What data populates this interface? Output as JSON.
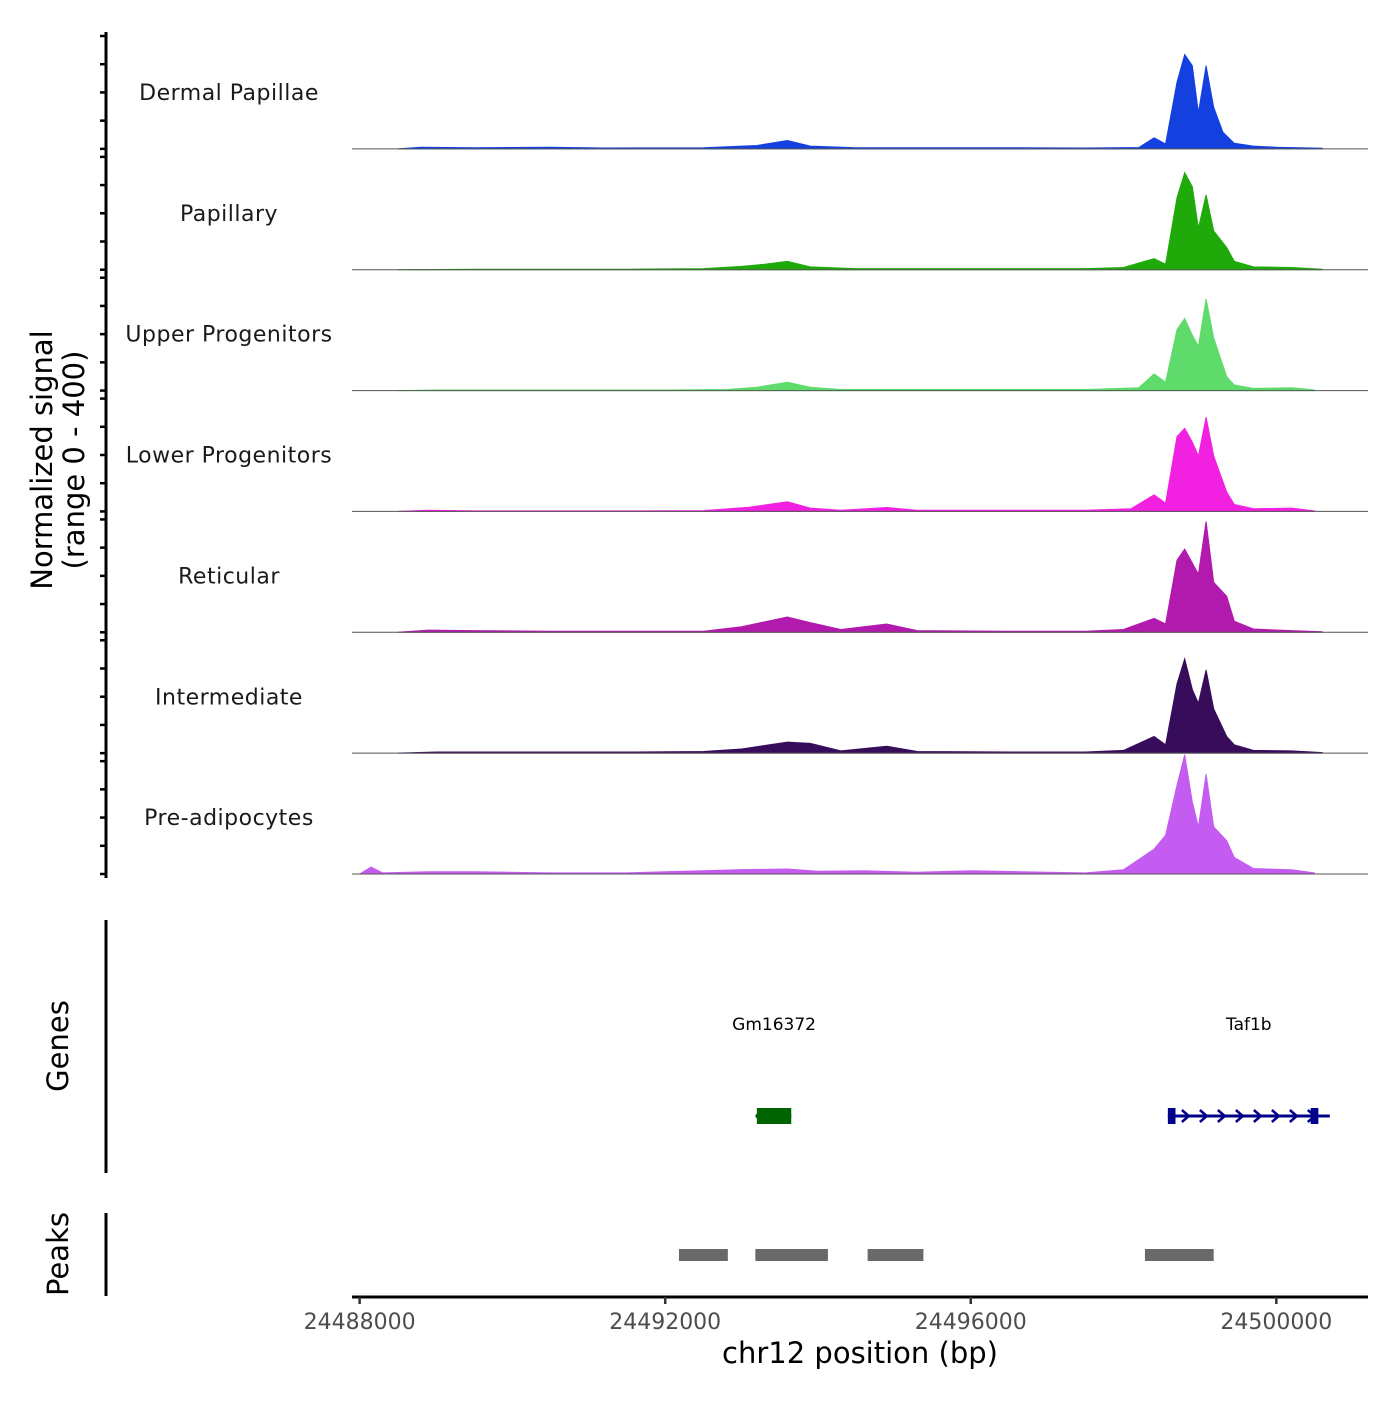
{
  "chart_data": {
    "type": "area",
    "title": "",
    "chromosome": "chr12",
    "xlabel": "chr12 position (bp)",
    "ylabel_line1": "Normalized signal",
    "ylabel_line2": "(range 0 - 400)",
    "xlim": [
      24487900,
      24501200
    ],
    "ylim": [
      0,
      400
    ],
    "x_ticks": [
      24488000,
      24492000,
      24496000,
      24500000
    ],
    "x_tick_labels": [
      "24488000",
      "24492000",
      "24496000",
      "24500000"
    ],
    "tracks": [
      {
        "name": "Dermal Papillae",
        "color": "#1440E0",
        "points": [
          [
            24488500,
            0
          ],
          [
            24488800,
            6
          ],
          [
            24489500,
            4
          ],
          [
            24490500,
            6
          ],
          [
            24491200,
            3
          ],
          [
            24492500,
            4
          ],
          [
            24493200,
            12
          ],
          [
            24493600,
            30
          ],
          [
            24493900,
            10
          ],
          [
            24494500,
            4
          ],
          [
            24495500,
            4
          ],
          [
            24496500,
            4
          ],
          [
            24497500,
            3
          ],
          [
            24498200,
            5
          ],
          [
            24498400,
            40
          ],
          [
            24498550,
            18
          ],
          [
            24498700,
            240
          ],
          [
            24498800,
            340
          ],
          [
            24498900,
            300
          ],
          [
            24498980,
            130
          ],
          [
            24499080,
            300
          ],
          [
            24499180,
            150
          ],
          [
            24499300,
            60
          ],
          [
            24499450,
            20
          ],
          [
            24499700,
            10
          ],
          [
            24500000,
            6
          ],
          [
            24500600,
            2
          ]
        ]
      },
      {
        "name": "Papillary",
        "color": "#1FAA0A",
        "points": [
          [
            24488500,
            0
          ],
          [
            24489500,
            2
          ],
          [
            24490500,
            2
          ],
          [
            24491500,
            2
          ],
          [
            24492500,
            4
          ],
          [
            24493000,
            12
          ],
          [
            24493300,
            20
          ],
          [
            24493600,
            30
          ],
          [
            24493900,
            10
          ],
          [
            24494500,
            4
          ],
          [
            24495500,
            4
          ],
          [
            24496500,
            4
          ],
          [
            24497500,
            4
          ],
          [
            24498000,
            8
          ],
          [
            24498400,
            40
          ],
          [
            24498550,
            20
          ],
          [
            24498700,
            260
          ],
          [
            24498800,
            350
          ],
          [
            24498900,
            300
          ],
          [
            24498980,
            150
          ],
          [
            24499080,
            270
          ],
          [
            24499180,
            140
          ],
          [
            24499350,
            80
          ],
          [
            24499450,
            30
          ],
          [
            24499700,
            10
          ],
          [
            24500200,
            8
          ],
          [
            24500600,
            2
          ]
        ]
      },
      {
        "name": "Upper Progenitors",
        "color": "#5EDB6A",
        "points": [
          [
            24488500,
            0
          ],
          [
            24489000,
            2
          ],
          [
            24490500,
            2
          ],
          [
            24492000,
            2
          ],
          [
            24492800,
            4
          ],
          [
            24493200,
            12
          ],
          [
            24493600,
            30
          ],
          [
            24493900,
            12
          ],
          [
            24494300,
            4
          ],
          [
            24495500,
            4
          ],
          [
            24496500,
            4
          ],
          [
            24497500,
            4
          ],
          [
            24498200,
            10
          ],
          [
            24498400,
            60
          ],
          [
            24498550,
            30
          ],
          [
            24498700,
            220
          ],
          [
            24498800,
            260
          ],
          [
            24498900,
            200
          ],
          [
            24498980,
            160
          ],
          [
            24499080,
            330
          ],
          [
            24499180,
            190
          ],
          [
            24499350,
            50
          ],
          [
            24499450,
            20
          ],
          [
            24499700,
            8
          ],
          [
            24500200,
            10
          ],
          [
            24500500,
            2
          ]
        ]
      },
      {
        "name": "Lower Progenitors",
        "color": "#F220E0",
        "points": [
          [
            24488500,
            0
          ],
          [
            24488900,
            4
          ],
          [
            24489500,
            2
          ],
          [
            24490500,
            2
          ],
          [
            24491500,
            2
          ],
          [
            24492500,
            3
          ],
          [
            24493100,
            15
          ],
          [
            24493600,
            35
          ],
          [
            24493900,
            12
          ],
          [
            24494300,
            4
          ],
          [
            24494900,
            14
          ],
          [
            24495300,
            4
          ],
          [
            24496500,
            4
          ],
          [
            24497500,
            4
          ],
          [
            24498100,
            10
          ],
          [
            24498400,
            60
          ],
          [
            24498550,
            30
          ],
          [
            24498700,
            270
          ],
          [
            24498800,
            300
          ],
          [
            24498900,
            250
          ],
          [
            24498980,
            200
          ],
          [
            24499080,
            340
          ],
          [
            24499180,
            200
          ],
          [
            24499350,
            70
          ],
          [
            24499450,
            25
          ],
          [
            24499700,
            10
          ],
          [
            24500200,
            12
          ],
          [
            24500500,
            2
          ]
        ]
      },
      {
        "name": "Reticular",
        "color": "#B21AAE",
        "points": [
          [
            24488500,
            0
          ],
          [
            24488900,
            8
          ],
          [
            24489500,
            6
          ],
          [
            24490500,
            4
          ],
          [
            24491500,
            4
          ],
          [
            24492500,
            4
          ],
          [
            24493000,
            20
          ],
          [
            24493600,
            55
          ],
          [
            24493900,
            35
          ],
          [
            24494300,
            10
          ],
          [
            24494900,
            30
          ],
          [
            24495300,
            6
          ],
          [
            24496500,
            4
          ],
          [
            24497500,
            4
          ],
          [
            24498000,
            10
          ],
          [
            24498400,
            50
          ],
          [
            24498550,
            30
          ],
          [
            24498700,
            260
          ],
          [
            24498800,
            300
          ],
          [
            24498900,
            250
          ],
          [
            24498980,
            210
          ],
          [
            24499080,
            400
          ],
          [
            24499180,
            180
          ],
          [
            24499350,
            130
          ],
          [
            24499450,
            40
          ],
          [
            24499700,
            12
          ],
          [
            24500200,
            6
          ],
          [
            24500600,
            2
          ]
        ]
      },
      {
        "name": "Intermediate",
        "color": "#370D5B",
        "points": [
          [
            24488500,
            0
          ],
          [
            24489000,
            4
          ],
          [
            24489500,
            4
          ],
          [
            24490500,
            4
          ],
          [
            24491500,
            4
          ],
          [
            24492500,
            6
          ],
          [
            24493000,
            15
          ],
          [
            24493600,
            40
          ],
          [
            24493900,
            35
          ],
          [
            24494300,
            8
          ],
          [
            24494900,
            25
          ],
          [
            24495300,
            6
          ],
          [
            24496500,
            4
          ],
          [
            24497500,
            4
          ],
          [
            24498000,
            10
          ],
          [
            24498400,
            60
          ],
          [
            24498550,
            30
          ],
          [
            24498700,
            250
          ],
          [
            24498800,
            340
          ],
          [
            24498900,
            230
          ],
          [
            24498980,
            180
          ],
          [
            24499080,
            300
          ],
          [
            24499180,
            160
          ],
          [
            24499350,
            60
          ],
          [
            24499450,
            30
          ],
          [
            24499700,
            10
          ],
          [
            24500200,
            8
          ],
          [
            24500600,
            2
          ]
        ]
      },
      {
        "name": "Pre-adipocytes",
        "color": "#C45CF2",
        "points": [
          [
            24488000,
            0
          ],
          [
            24488150,
            25
          ],
          [
            24488300,
            4
          ],
          [
            24488900,
            8
          ],
          [
            24489500,
            8
          ],
          [
            24490500,
            4
          ],
          [
            24491500,
            4
          ],
          [
            24492000,
            8
          ],
          [
            24492500,
            12
          ],
          [
            24493000,
            16
          ],
          [
            24493600,
            18
          ],
          [
            24494000,
            10
          ],
          [
            24494600,
            12
          ],
          [
            24495300,
            6
          ],
          [
            24496000,
            12
          ],
          [
            24497000,
            6
          ],
          [
            24497500,
            4
          ],
          [
            24498000,
            15
          ],
          [
            24498400,
            90
          ],
          [
            24498550,
            140
          ],
          [
            24498700,
            320
          ],
          [
            24498800,
            430
          ],
          [
            24498900,
            260
          ],
          [
            24498980,
            170
          ],
          [
            24499080,
            360
          ],
          [
            24499180,
            170
          ],
          [
            24499350,
            120
          ],
          [
            24499450,
            60
          ],
          [
            24499700,
            20
          ],
          [
            24500200,
            15
          ],
          [
            24500500,
            4
          ]
        ]
      }
    ],
    "genes": [
      {
        "name": "Gm16372",
        "color": "#006400",
        "start": 24493200,
        "end": 24493650,
        "strand": "-",
        "exons": [
          [
            24493200,
            24493650
          ]
        ]
      },
      {
        "name": "Taf1b",
        "color": "#00008B",
        "start": 24498580,
        "end": 24500700,
        "strand": "+",
        "exons": [
          [
            24498580,
            24498680
          ],
          [
            24500450,
            24500550
          ]
        ]
      }
    ],
    "peaks": [
      [
        24492180,
        24492820
      ],
      [
        24493180,
        24494130
      ],
      [
        24494650,
        24495380
      ],
      [
        24498280,
        24499180
      ]
    ],
    "panel_labels": {
      "genes": "Genes",
      "peaks": "Peaks"
    }
  }
}
